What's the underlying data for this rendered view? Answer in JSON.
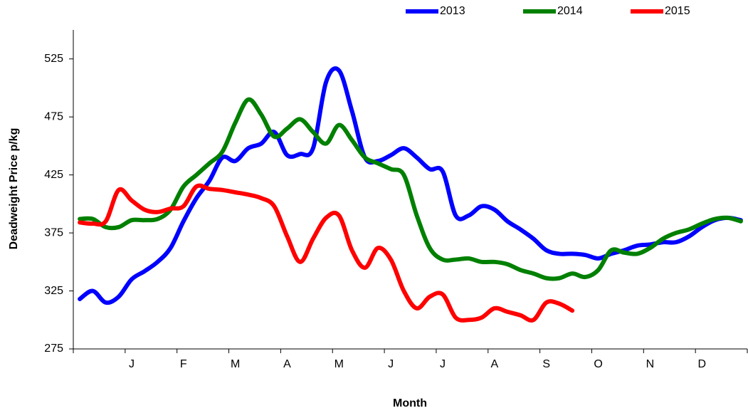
{
  "chart_data": {
    "type": "line",
    "x_label": "Month",
    "y_label": "Deadweight Price p/kg",
    "categories": [
      null,
      null,
      null,
      null,
      "J",
      null,
      null,
      null,
      "F",
      null,
      null,
      null,
      "M",
      null,
      null,
      null,
      "A",
      null,
      null,
      null,
      "M",
      null,
      null,
      null,
      "J",
      null,
      null,
      null,
      "J",
      null,
      null,
      null,
      "A",
      null,
      null,
      null,
      "S",
      null,
      null,
      null,
      "O",
      null,
      null,
      null,
      "N",
      null,
      null,
      null,
      "D",
      null,
      null,
      null
    ],
    "ylim": [
      275,
      550
    ],
    "yticks": [
      275,
      325,
      375,
      425,
      475,
      525
    ],
    "grid": false,
    "legend": "top-right",
    "series": [
      {
        "name": "2013",
        "color": "#0000ff",
        "values": [
          318,
          325,
          315,
          320,
          335,
          342,
          350,
          362,
          385,
          405,
          420,
          440,
          437,
          448,
          452,
          462,
          442,
          443,
          448,
          505,
          515,
          480,
          440,
          437,
          442,
          448,
          440,
          430,
          428,
          390,
          390,
          398,
          395,
          385,
          378,
          370,
          360,
          357,
          357,
          356,
          353,
          357,
          360,
          364,
          365,
          367,
          367,
          372,
          380,
          386,
          388,
          386
        ]
      },
      {
        "name": "2014",
        "color": "#008000",
        "values": [
          387,
          387,
          380,
          380,
          386,
          386,
          387,
          395,
          415,
          425,
          435,
          445,
          470,
          490,
          477,
          458,
          465,
          473,
          462,
          452,
          468,
          455,
          440,
          435,
          430,
          425,
          390,
          362,
          352,
          352,
          353,
          350,
          350,
          348,
          343,
          340,
          336,
          336,
          340,
          337,
          343,
          360,
          358,
          357,
          362,
          370,
          375,
          378,
          383,
          387,
          388,
          385
        ]
      },
      {
        "name": "2015",
        "color": "#ff0000",
        "values": [
          384,
          383,
          385,
          412,
          403,
          395,
          393,
          396,
          398,
          415,
          413,
          412,
          410,
          408,
          405,
          398,
          372,
          350,
          370,
          388,
          390,
          360,
          345,
          362,
          352,
          325,
          310,
          320,
          322,
          302,
          300,
          302,
          310,
          307,
          304,
          300,
          315,
          314,
          308,
          null,
          null,
          null,
          null,
          null,
          null,
          null,
          null,
          null,
          null,
          null,
          null,
          null
        ]
      }
    ]
  }
}
